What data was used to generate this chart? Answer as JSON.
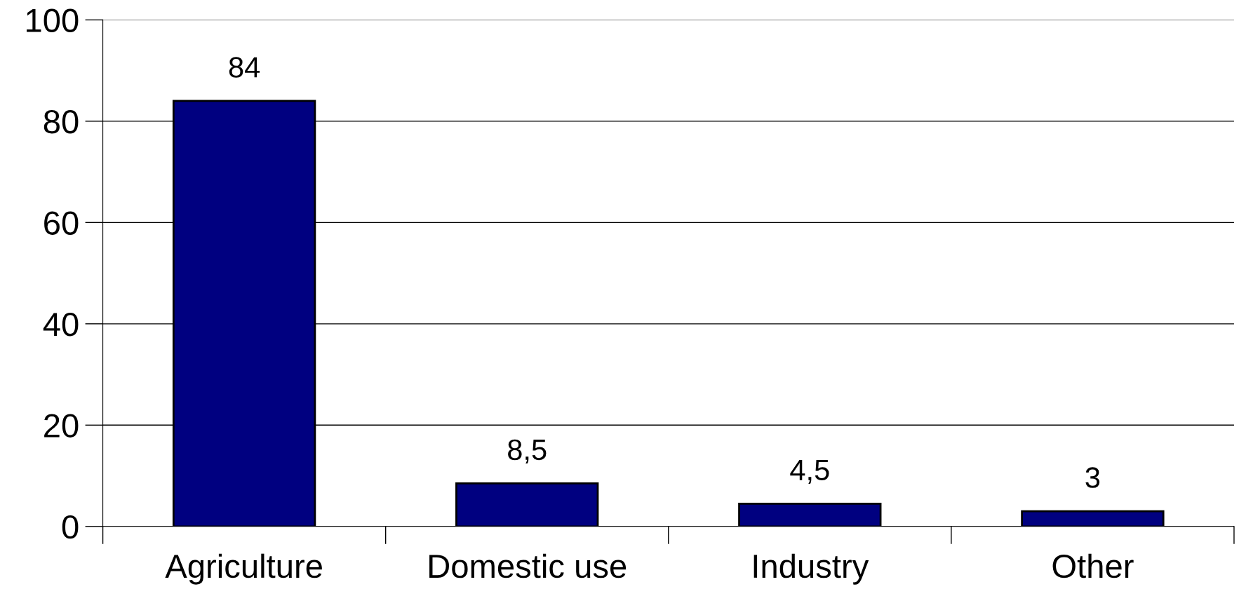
{
  "chart_data": {
    "type": "bar",
    "categories": [
      "Agriculture",
      "Domestic use",
      "Industry",
      "Other"
    ],
    "values": [
      84,
      8.5,
      4.5,
      3
    ],
    "value_labels": [
      "84",
      "8,5",
      "4,5",
      "3"
    ],
    "color": "#000080",
    "ylim": [
      0,
      100
    ],
    "yticks": [
      0,
      20,
      40,
      60,
      80,
      100
    ],
    "grid": "y"
  }
}
